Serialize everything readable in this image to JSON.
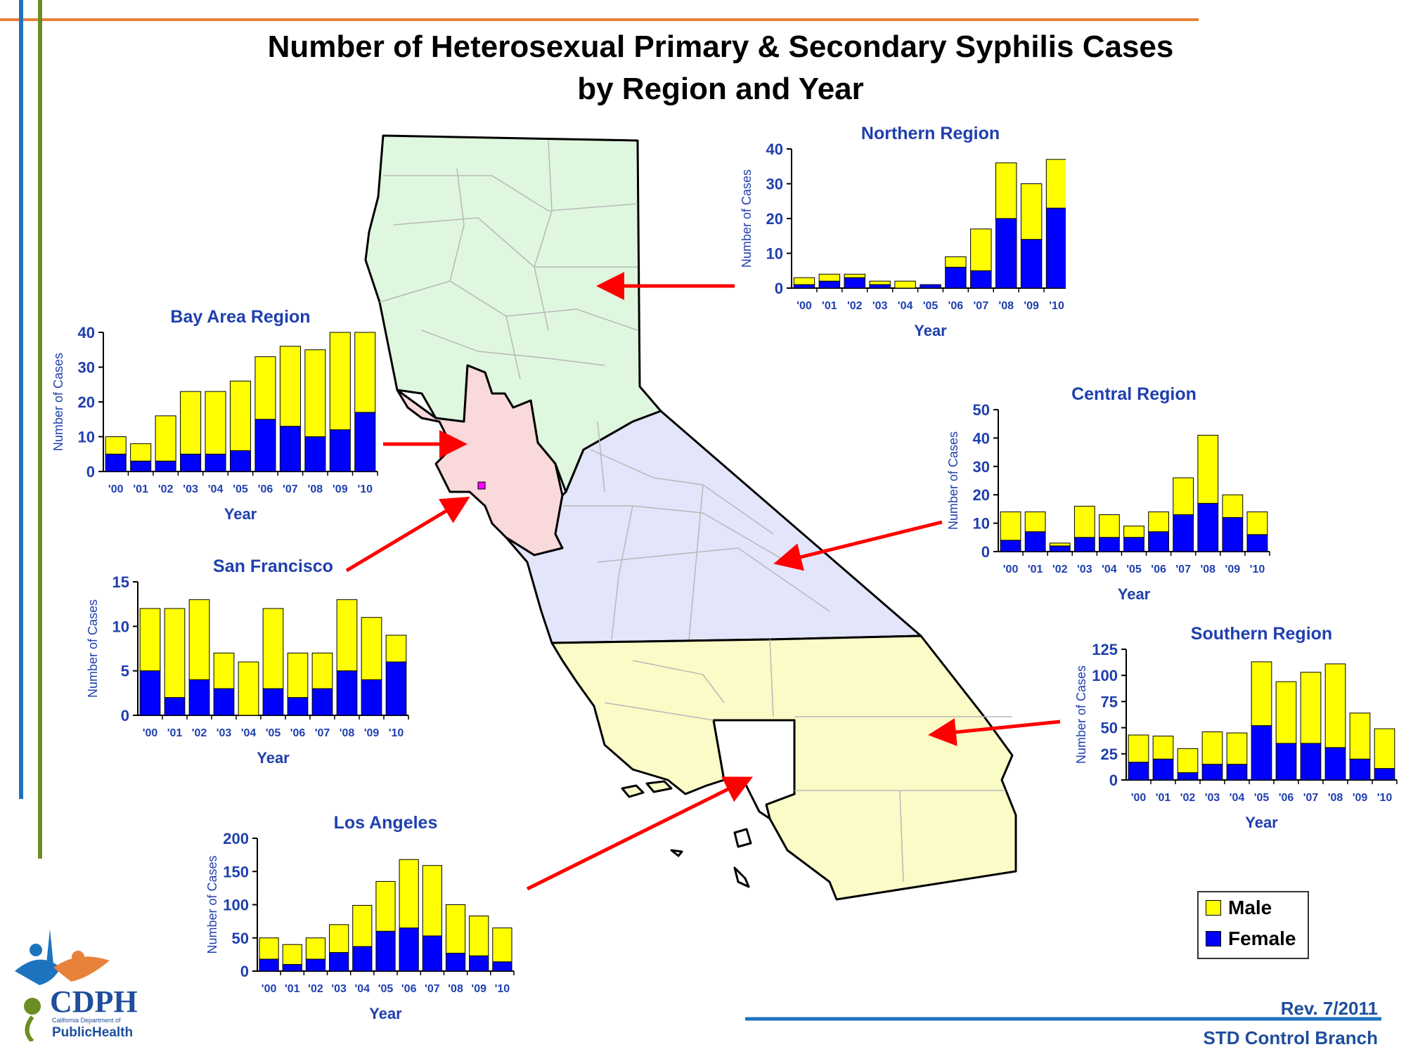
{
  "title": {
    "line1": "Number of Heterosexual Primary & Secondary Syphilis Cases",
    "line2": "by Region and Year"
  },
  "footer": {
    "revision": "Rev. 7/2011",
    "branch": "STD Control Branch"
  },
  "logo": {
    "text_main": "CDPH",
    "text_sub": "California Department of",
    "text_bottom": "PublicHealth"
  },
  "legend": [
    {
      "label": "Male",
      "color": "#ffff00"
    },
    {
      "label": "Female",
      "color": "#0000ff"
    }
  ],
  "colors": {
    "male": "#ffff00",
    "female": "#0000ff",
    "arrow": "#ff0000",
    "chart_title": "#1f3fae",
    "northern_map": "#dff7de",
    "bay_map": "#f9d9d9",
    "central_map": "#e3e5fb",
    "southern_map": "#fbfbc8",
    "county_lines": "#b8b8b8",
    "rule_orange": "#e8823a",
    "rule_blue": "#1e73be",
    "rule_green": "#6b8e23"
  },
  "chart_data": [
    {
      "id": "northern",
      "type": "bar",
      "title": "Northern Region",
      "xlabel": "Year",
      "ylabel": "Number of Cases",
      "categories": [
        "'00",
        "'01",
        "'02",
        "'03",
        "'04",
        "'05",
        "'06",
        "'07",
        "'08",
        "'09",
        "'10"
      ],
      "ylim": [
        0,
        40
      ],
      "yticks": [
        0,
        10,
        20,
        30,
        40
      ],
      "stacked": true,
      "series": [
        {
          "name": "Female",
          "values": [
            1,
            2,
            3,
            1,
            0,
            1,
            6,
            5,
            20,
            14,
            23
          ]
        },
        {
          "name": "Male",
          "values": [
            2,
            2,
            1,
            1,
            2,
            0,
            3,
            12,
            16,
            16,
            14
          ]
        }
      ]
    },
    {
      "id": "bay",
      "type": "bar",
      "title": "Bay Area Region",
      "xlabel": "Year",
      "ylabel": "Number of Cases",
      "categories": [
        "'00",
        "'01",
        "'02",
        "'03",
        "'04",
        "'05",
        "'06",
        "'07",
        "'08",
        "'09",
        "'10"
      ],
      "ylim": [
        0,
        40
      ],
      "yticks": [
        0,
        10,
        20,
        30,
        40
      ],
      "stacked": true,
      "series": [
        {
          "name": "Female",
          "values": [
            5,
            3,
            3,
            5,
            5,
            6,
            15,
            13,
            10,
            12,
            17
          ]
        },
        {
          "name": "Male",
          "values": [
            5,
            5,
            13,
            18,
            18,
            20,
            18,
            23,
            25,
            28,
            23
          ]
        }
      ]
    },
    {
      "id": "central",
      "type": "bar",
      "title": "Central Region",
      "xlabel": "Year",
      "ylabel": "Number of Cases",
      "categories": [
        "'00",
        "'01",
        "'02",
        "'03",
        "'04",
        "'05",
        "'06",
        "'07",
        "'08",
        "'09",
        "'10"
      ],
      "ylim": [
        0,
        50
      ],
      "yticks": [
        0,
        10,
        20,
        30,
        40,
        50
      ],
      "stacked": true,
      "series": [
        {
          "name": "Female",
          "values": [
            4,
            7,
            2,
            5,
            5,
            5,
            7,
            13,
            17,
            12,
            6
          ]
        },
        {
          "name": "Male",
          "values": [
            10,
            7,
            1,
            11,
            8,
            4,
            7,
            13,
            24,
            8,
            8
          ]
        }
      ]
    },
    {
      "id": "sf",
      "type": "bar",
      "title": "San Francisco",
      "xlabel": "Year",
      "ylabel": "Number of Cases",
      "categories": [
        "'00",
        "'01",
        "'02",
        "'03",
        "'04",
        "'05",
        "'06",
        "'07",
        "'08",
        "'09",
        "'10"
      ],
      "ylim": [
        0,
        15
      ],
      "yticks": [
        0,
        5,
        10,
        15
      ],
      "stacked": true,
      "series": [
        {
          "name": "Female",
          "values": [
            5,
            2,
            4,
            3,
            0,
            3,
            2,
            3,
            5,
            4,
            6
          ]
        },
        {
          "name": "Male",
          "values": [
            7,
            10,
            9,
            4,
            6,
            9,
            5,
            4,
            8,
            7,
            3
          ]
        }
      ]
    },
    {
      "id": "southern",
      "type": "bar",
      "title": "Southern Region",
      "xlabel": "Year",
      "ylabel": "Number of Cases",
      "categories": [
        "'00",
        "'01",
        "'02",
        "'03",
        "'04",
        "'05",
        "'06",
        "'07",
        "'08",
        "'09",
        "'10"
      ],
      "ylim": [
        0,
        125
      ],
      "yticks": [
        0,
        25,
        50,
        75,
        100,
        125
      ],
      "stacked": true,
      "series": [
        {
          "name": "Female",
          "values": [
            17,
            20,
            7,
            15,
            15,
            52,
            35,
            35,
            31,
            20,
            11
          ]
        },
        {
          "name": "Male",
          "values": [
            26,
            22,
            23,
            31,
            30,
            61,
            59,
            68,
            80,
            44,
            38
          ]
        }
      ]
    },
    {
      "id": "la",
      "type": "bar",
      "title": "Los Angeles",
      "xlabel": "Year",
      "ylabel": "Number of Cases",
      "categories": [
        "'00",
        "'01",
        "'02",
        "'03",
        "'04",
        "'05",
        "'06",
        "'07",
        "'08",
        "'09",
        "'10"
      ],
      "ylim": [
        0,
        200
      ],
      "yticks": [
        0,
        50,
        100,
        150,
        200
      ],
      "stacked": true,
      "series": [
        {
          "name": "Female",
          "values": [
            18,
            10,
            18,
            28,
            37,
            60,
            65,
            53,
            27,
            23,
            14
          ]
        },
        {
          "name": "Male",
          "values": [
            32,
            30,
            32,
            42,
            62,
            75,
            103,
            106,
            73,
            60,
            51
          ]
        }
      ]
    }
  ]
}
